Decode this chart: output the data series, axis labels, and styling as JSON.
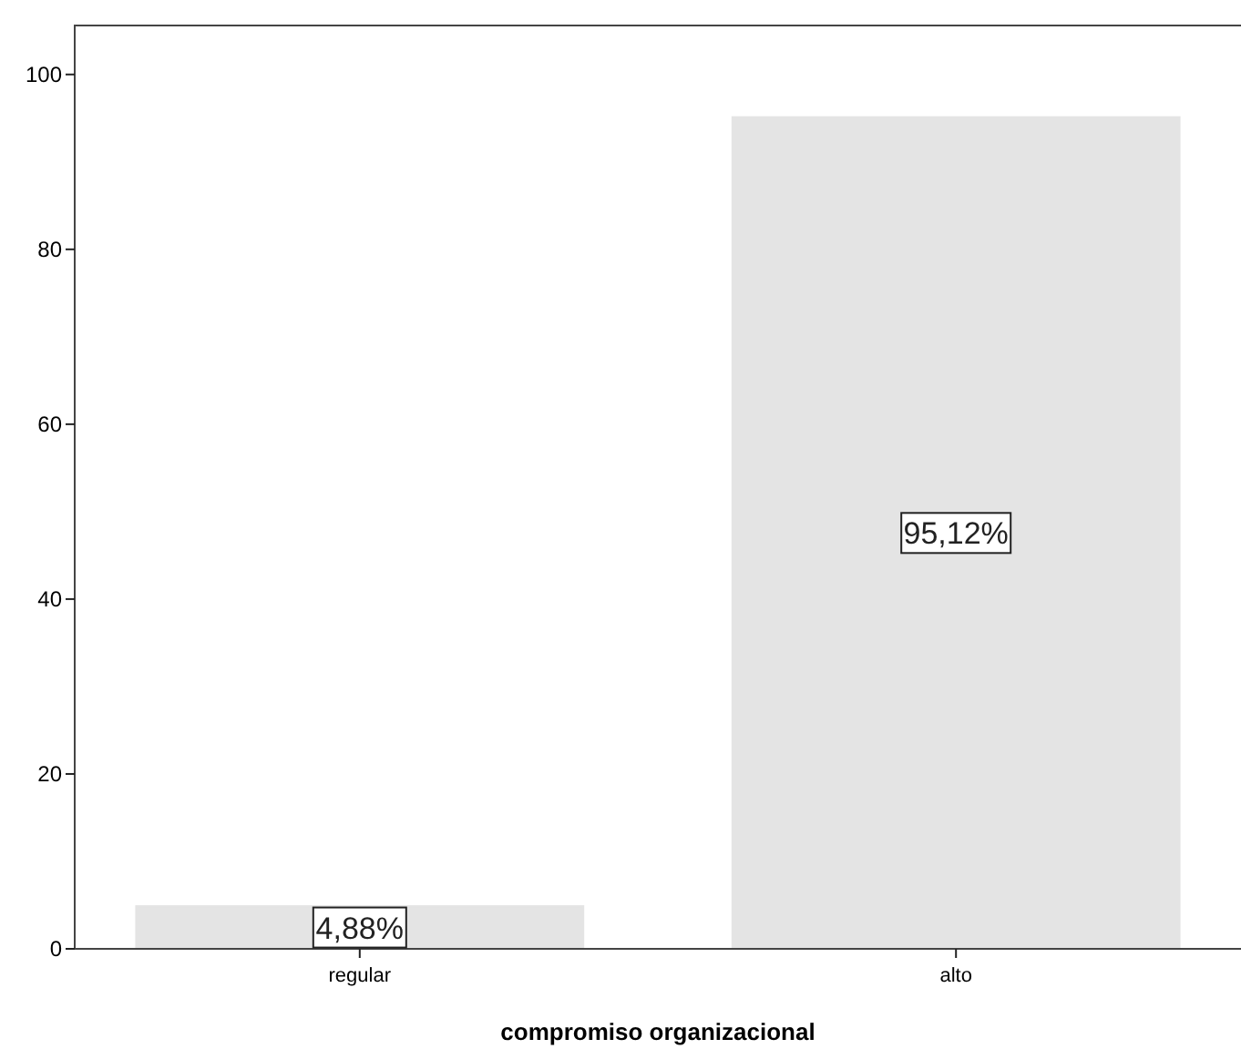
{
  "chart_data": {
    "type": "bar",
    "xlabel": "compromiso organizacional",
    "categories": [
      "regular",
      "alto"
    ],
    "values": [
      4.88,
      95.12
    ],
    "value_labels": [
      "4,88%",
      "95,12%"
    ],
    "color": "#e4e4e4",
    "ylim": [
      0,
      105.6
    ],
    "yticks": [
      0,
      20,
      40,
      60,
      80,
      100
    ],
    "grid": false
  }
}
